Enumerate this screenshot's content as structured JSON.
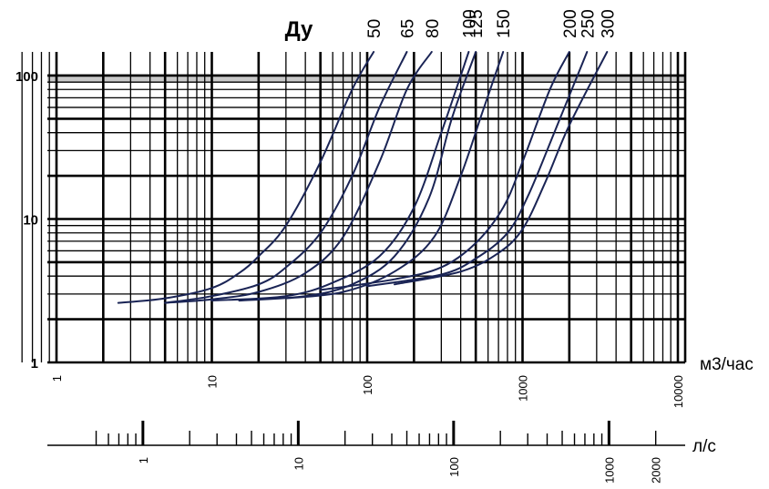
{
  "chart_data": {
    "type": "line",
    "title": "Ду",
    "xlabel": "м3/час",
    "x2label": "л/с",
    "x_scale": "log",
    "y_scale": "log",
    "xlim": [
      0.6,
      10000
    ],
    "ylim": [
      1,
      150
    ],
    "grid": true,
    "y_ticks": [
      {
        "value": 1,
        "label": "1"
      },
      {
        "value": 10,
        "label": "10"
      },
      {
        "value": 100,
        "label": "100"
      }
    ],
    "x_ticks": [
      {
        "value": 1,
        "label": "1"
      },
      {
        "value": 10,
        "label": "10"
      },
      {
        "value": 100,
        "label": "100"
      },
      {
        "value": 1000,
        "label": "1000"
      },
      {
        "value": 10000,
        "label": "10000"
      }
    ],
    "x2_ticks": [
      {
        "value": 1,
        "label": "1"
      },
      {
        "value": 10,
        "label": "10"
      },
      {
        "value": 100,
        "label": "100"
      },
      {
        "value": 1000,
        "label": "1000"
      },
      {
        "value": 2000,
        "label": "2000"
      }
    ],
    "series": [
      {
        "name": "50",
        "points": [
          [
            2.5,
            2.6
          ],
          [
            5,
            2.8
          ],
          [
            10,
            3.3
          ],
          [
            15,
            4.2
          ],
          [
            20,
            5.5
          ],
          [
            30,
            9
          ],
          [
            50,
            25
          ],
          [
            80,
            80
          ],
          [
            110,
            150
          ]
        ]
      },
      {
        "name": "65",
        "points": [
          [
            5,
            2.6
          ],
          [
            10,
            2.9
          ],
          [
            20,
            3.5
          ],
          [
            30,
            4.6
          ],
          [
            50,
            8
          ],
          [
            80,
            20
          ],
          [
            120,
            60
          ],
          [
            180,
            150
          ]
        ]
      },
      {
        "name": "80",
        "points": [
          [
            5,
            2.6
          ],
          [
            10,
            2.75
          ],
          [
            20,
            3.1
          ],
          [
            40,
            4.2
          ],
          [
            70,
            7.5
          ],
          [
            120,
            25
          ],
          [
            180,
            80
          ],
          [
            260,
            150
          ]
        ]
      },
      {
        "name": "100",
        "points": [
          [
            10,
            2.7
          ],
          [
            30,
            2.9
          ],
          [
            60,
            3.6
          ],
          [
            120,
            5.5
          ],
          [
            200,
            12
          ],
          [
            300,
            40
          ],
          [
            450,
            150
          ]
        ]
      },
      {
        "name": "125",
        "points": [
          [
            15,
            2.7
          ],
          [
            40,
            2.9
          ],
          [
            80,
            3.5
          ],
          [
            150,
            5.5
          ],
          [
            250,
            14
          ],
          [
            350,
            50
          ],
          [
            500,
            150
          ]
        ]
      },
      {
        "name": "150",
        "points": [
          [
            30,
            2.8
          ],
          [
            70,
            3.1
          ],
          [
            150,
            4.3
          ],
          [
            270,
            7.5
          ],
          [
            400,
            20
          ],
          [
            550,
            55
          ],
          [
            750,
            150
          ]
        ]
      },
      {
        "name": "200",
        "points": [
          [
            50,
            3.2
          ],
          [
            150,
            3.8
          ],
          [
            300,
            4.6
          ],
          [
            500,
            6.8
          ],
          [
            750,
            12
          ],
          [
            1000,
            25
          ],
          [
            1500,
            80
          ],
          [
            2000,
            150
          ]
        ]
      },
      {
        "name": "250",
        "points": [
          [
            100,
            3.4
          ],
          [
            300,
            4.1
          ],
          [
            500,
            5.3
          ],
          [
            800,
            8
          ],
          [
            1100,
            15
          ],
          [
            1600,
            40
          ],
          [
            2600,
            150
          ]
        ]
      },
      {
        "name": "300",
        "points": [
          [
            150,
            3.5
          ],
          [
            400,
            4.3
          ],
          [
            700,
            5.8
          ],
          [
            1000,
            8.5
          ],
          [
            1400,
            18
          ],
          [
            2000,
            45
          ],
          [
            3500,
            150
          ]
        ]
      }
    ]
  },
  "colors": {
    "curve": "#1a2455",
    "grid": "#000000",
    "band": "#c8c8c8"
  }
}
